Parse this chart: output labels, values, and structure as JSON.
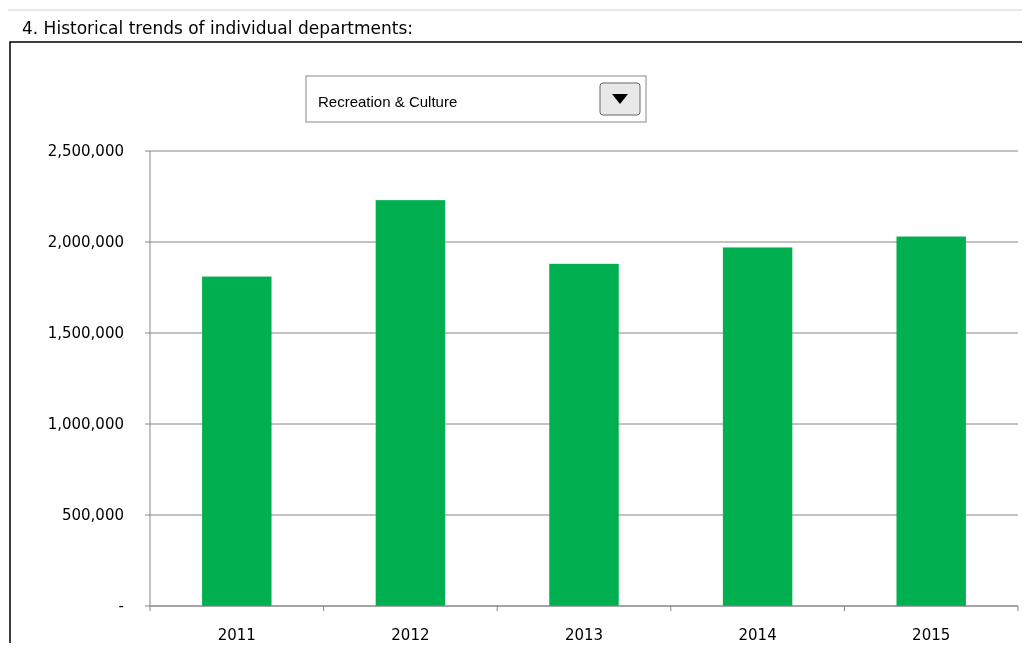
{
  "chart_data": {
    "type": "bar",
    "title": "4. Historical trends of individual departments:",
    "subtitle": "Recreation & Culture",
    "categories": [
      "2011",
      "2012",
      "2013",
      "2014",
      "2015"
    ],
    "values": [
      1810000,
      2230000,
      1880000,
      1970000,
      2030000
    ],
    "color": "#00b050",
    "ylim": [
      0,
      2500000
    ],
    "yticks": [
      {
        "value": 0,
        "label": "-"
      },
      {
        "value": 500000,
        "label": "500,000"
      },
      {
        "value": 1000000,
        "label": "1,000,000"
      },
      {
        "value": 1500000,
        "label": "1,500,000"
      },
      {
        "value": 2000000,
        "label": "2,000,000"
      },
      {
        "value": 2500000,
        "label": "2,500,000"
      }
    ],
    "grid": "y"
  }
}
